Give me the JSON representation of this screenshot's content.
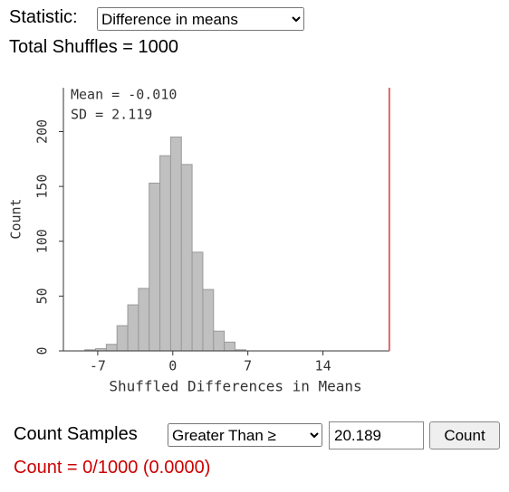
{
  "statistic": {
    "label": "Statistic:",
    "selected": "Difference in means"
  },
  "total_shuffles": "Total Shuffles = 1000",
  "chart_data": {
    "type": "histogram",
    "bins": [
      -8.2,
      -7.2,
      -6.2,
      -5.2,
      -4.2,
      -3.2,
      -2.2,
      -1.2,
      -0.2,
      0.8,
      1.8,
      2.8,
      3.8,
      4.8,
      5.8,
      6.8
    ],
    "counts": [
      1,
      2,
      6,
      23,
      42,
      57,
      153,
      178,
      195,
      170,
      90,
      56,
      18,
      8,
      1
    ],
    "color": "#c0c0c0",
    "xlabel": "Shuffled Differences in Means",
    "ylabel": "Count",
    "xlim": [
      -10.2,
      20.2
    ],
    "ylim": [
      0,
      240
    ],
    "xticks": [
      -7,
      0,
      7,
      14
    ],
    "yticks": [
      0,
      50,
      100,
      150,
      200
    ],
    "annotations": [
      "Mean = -0.010",
      "SD = 2.119"
    ],
    "threshold": 20.189,
    "threshold_color": "#e06666"
  },
  "count_samples": {
    "label": "Count Samples",
    "direction": "Greater Than ≥",
    "button": "Count",
    "result": "Count = 0/1000 (0.0000)"
  }
}
